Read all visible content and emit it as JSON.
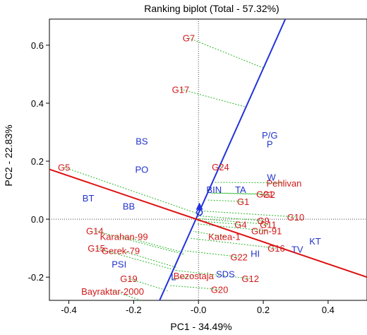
{
  "chart_data": {
    "type": "scatter",
    "title": "Ranking biplot (Total - 57.32%)",
    "xlabel": "PC1 - 34.49%",
    "ylabel": "PC2 - 22.83%",
    "xlim": [
      -0.46,
      0.52
    ],
    "ylim": [
      -0.28,
      0.69
    ],
    "x_ticks": [
      {
        "v": -0.4,
        "label": "-0.4"
      },
      {
        "v": -0.2,
        "label": "-0.2"
      },
      {
        "v": 0.0,
        "label": "-0.0"
      },
      {
        "v": 0.2,
        "label": "0.2"
      },
      {
        "v": 0.4,
        "label": "0.4"
      }
    ],
    "y_ticks": [
      {
        "v": 0.6,
        "label": "0.6"
      },
      {
        "v": 0.4,
        "label": "0.4"
      },
      {
        "v": 0.2,
        "label": "0.2"
      },
      {
        "v": 0.0,
        "label": "0.0"
      },
      {
        "v": -0.2,
        "label": "-0.2"
      }
    ],
    "grid": false,
    "genotypes": [
      {
        "label": "G7",
        "x": -0.03,
        "y": 0.625,
        "proj": [
          0.201,
          0.521
        ]
      },
      {
        "label": "G17",
        "x": -0.055,
        "y": 0.448,
        "proj": [
          0.149,
          0.386
        ]
      },
      {
        "label": "G5",
        "x": -0.415,
        "y": 0.179,
        "proj": [
          0.006,
          0.016
        ]
      },
      {
        "label": "G24",
        "x": 0.068,
        "y": 0.181,
        "proj": [
          0.073,
          0.191
        ]
      },
      {
        "label": "Pehlivan",
        "x": 0.264,
        "y": 0.125,
        "proj": [
          0.049,
          0.127
        ]
      },
      {
        "label": "G21",
        "x": 0.205,
        "y": 0.087,
        "proj": [
          0.035,
          0.091
        ]
      },
      {
        "label": "G1",
        "x": 0.138,
        "y": 0.061,
        "proj": [
          0.026,
          0.066
        ]
      },
      {
        "label": "G2",
        "x": 0.218,
        "y": 0.085,
        "proj": [
          0.035,
          0.09
        ]
      },
      {
        "label": "G10",
        "x": 0.3,
        "y": 0.008,
        "proj": [
          0.011,
          0.028
        ]
      },
      {
        "label": "G9",
        "x": 0.2,
        "y": -0.005,
        "proj": [
          0.004,
          0.011
        ]
      },
      {
        "label": "G11",
        "x": 0.215,
        "y": -0.018,
        "proj": [
          0.001,
          0.002
        ]
      },
      {
        "label": "G4",
        "x": 0.13,
        "y": -0.018,
        "proj": [
          -0.002,
          -0.006
        ]
      },
      {
        "label": "Gün-91",
        "x": 0.21,
        "y": -0.04,
        "proj": [
          -0.006,
          -0.016
        ]
      },
      {
        "label": "Katea-1",
        "x": 0.08,
        "y": -0.06,
        "proj": [
          -0.016,
          -0.042
        ]
      },
      {
        "label": "G16",
        "x": 0.24,
        "y": -0.1,
        "proj": [
          -0.025,
          -0.066
        ]
      },
      {
        "label": "G22",
        "x": 0.125,
        "y": -0.13,
        "proj": [
          -0.042,
          -0.109
        ]
      },
      {
        "label": "G12",
        "x": 0.16,
        "y": -0.205,
        "proj": [
          -0.068,
          -0.177
        ]
      },
      {
        "label": "G20",
        "x": 0.065,
        "y": -0.242,
        "proj": [
          -0.088,
          -0.229
        ]
      },
      {
        "label": "Bezostaja",
        "x": -0.015,
        "y": -0.195,
        "proj": [
          -0.079,
          -0.206
        ]
      },
      {
        "label": "G14",
        "x": -0.32,
        "y": -0.04,
        "proj": [
          -0.046,
          -0.121
        ]
      },
      {
        "label": "Karahan-99",
        "x": -0.23,
        "y": -0.06,
        "proj": [
          -0.044,
          -0.116
        ]
      },
      {
        "label": "G15",
        "x": -0.315,
        "y": -0.1,
        "proj": [
          -0.068,
          -0.177
        ]
      },
      {
        "label": "Gerek-79",
        "x": -0.24,
        "y": -0.108,
        "proj": [
          -0.064,
          -0.168
        ]
      },
      {
        "label": "G19",
        "x": -0.215,
        "y": -0.205,
        "proj": [
          -0.095,
          -0.247
        ]
      },
      {
        "label": "Bayraktar-2000",
        "x": -0.265,
        "y": -0.248,
        "proj": [
          -0.116,
          -0.302
        ]
      }
    ],
    "traits": [
      {
        "label": "P/G",
        "x": 0.22,
        "y": 0.29
      },
      {
        "label": "P",
        "x": 0.22,
        "y": 0.26
      },
      {
        "label": "BS",
        "x": -0.175,
        "y": 0.27
      },
      {
        "label": "PO",
        "x": -0.175,
        "y": 0.172
      },
      {
        "label": "W",
        "x": 0.225,
        "y": 0.145
      },
      {
        "label": "BIN",
        "x": 0.048,
        "y": 0.103
      },
      {
        "label": "TA",
        "x": 0.13,
        "y": 0.103
      },
      {
        "label": "BT",
        "x": -0.34,
        "y": 0.073
      },
      {
        "label": "BB",
        "x": -0.215,
        "y": 0.045
      },
      {
        "label": "KT",
        "x": 0.36,
        "y": -0.075
      },
      {
        "label": "TV",
        "x": 0.305,
        "y": -0.103
      },
      {
        "label": "HI",
        "x": 0.175,
        "y": -0.118
      },
      {
        "label": "SDS",
        "x": 0.083,
        "y": -0.188
      },
      {
        "label": "PSI",
        "x": -0.245,
        "y": -0.155
      },
      {
        "label": "L",
        "x": -0.077,
        "y": -0.198
      }
    ],
    "ata_line": {
      "x": [
        -0.46,
        0.52
      ],
      "y": [
        0.172,
        -0.2
      ]
    },
    "atc_line": {
      "x": [
        -0.128,
        0.268
      ],
      "y": [
        -0.3,
        0.69
      ]
    },
    "average_environment": {
      "x": 0.003,
      "y": 0.028
    }
  }
}
